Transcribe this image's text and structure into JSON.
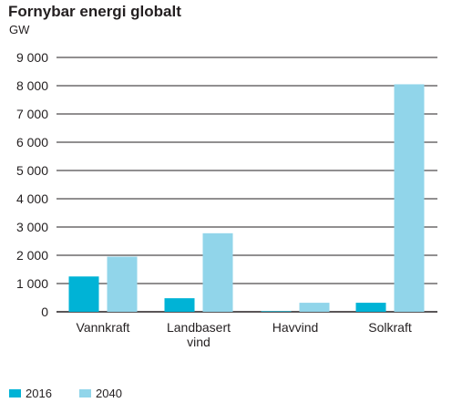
{
  "chart_data": {
    "type": "bar",
    "title": "Fornybar energi globalt",
    "unit": "GW",
    "categories": [
      [
        "Vannkraft"
      ],
      [
        "Landbasert",
        "vind"
      ],
      [
        "Havvind"
      ],
      [
        "Solkraft"
      ]
    ],
    "series": [
      {
        "name": "2016",
        "color": "#00b3d6",
        "values": [
          1250,
          480,
          20,
          320
        ]
      },
      {
        "name": "2040",
        "color": "#91d5ea",
        "values": [
          1950,
          2780,
          320,
          8050
        ]
      }
    ],
    "ylim": [
      0,
      9000
    ],
    "yticks": [
      0,
      1000,
      2000,
      3000,
      4000,
      5000,
      6000,
      7000,
      8000,
      9000
    ],
    "ytick_labels": [
      "0",
      "1 000",
      "2 000",
      "3 000",
      "4 000",
      "5 000",
      "6 000",
      "7 000",
      "8 000",
      "9 000"
    ],
    "grid": true,
    "legend_position": "bottom-left"
  }
}
